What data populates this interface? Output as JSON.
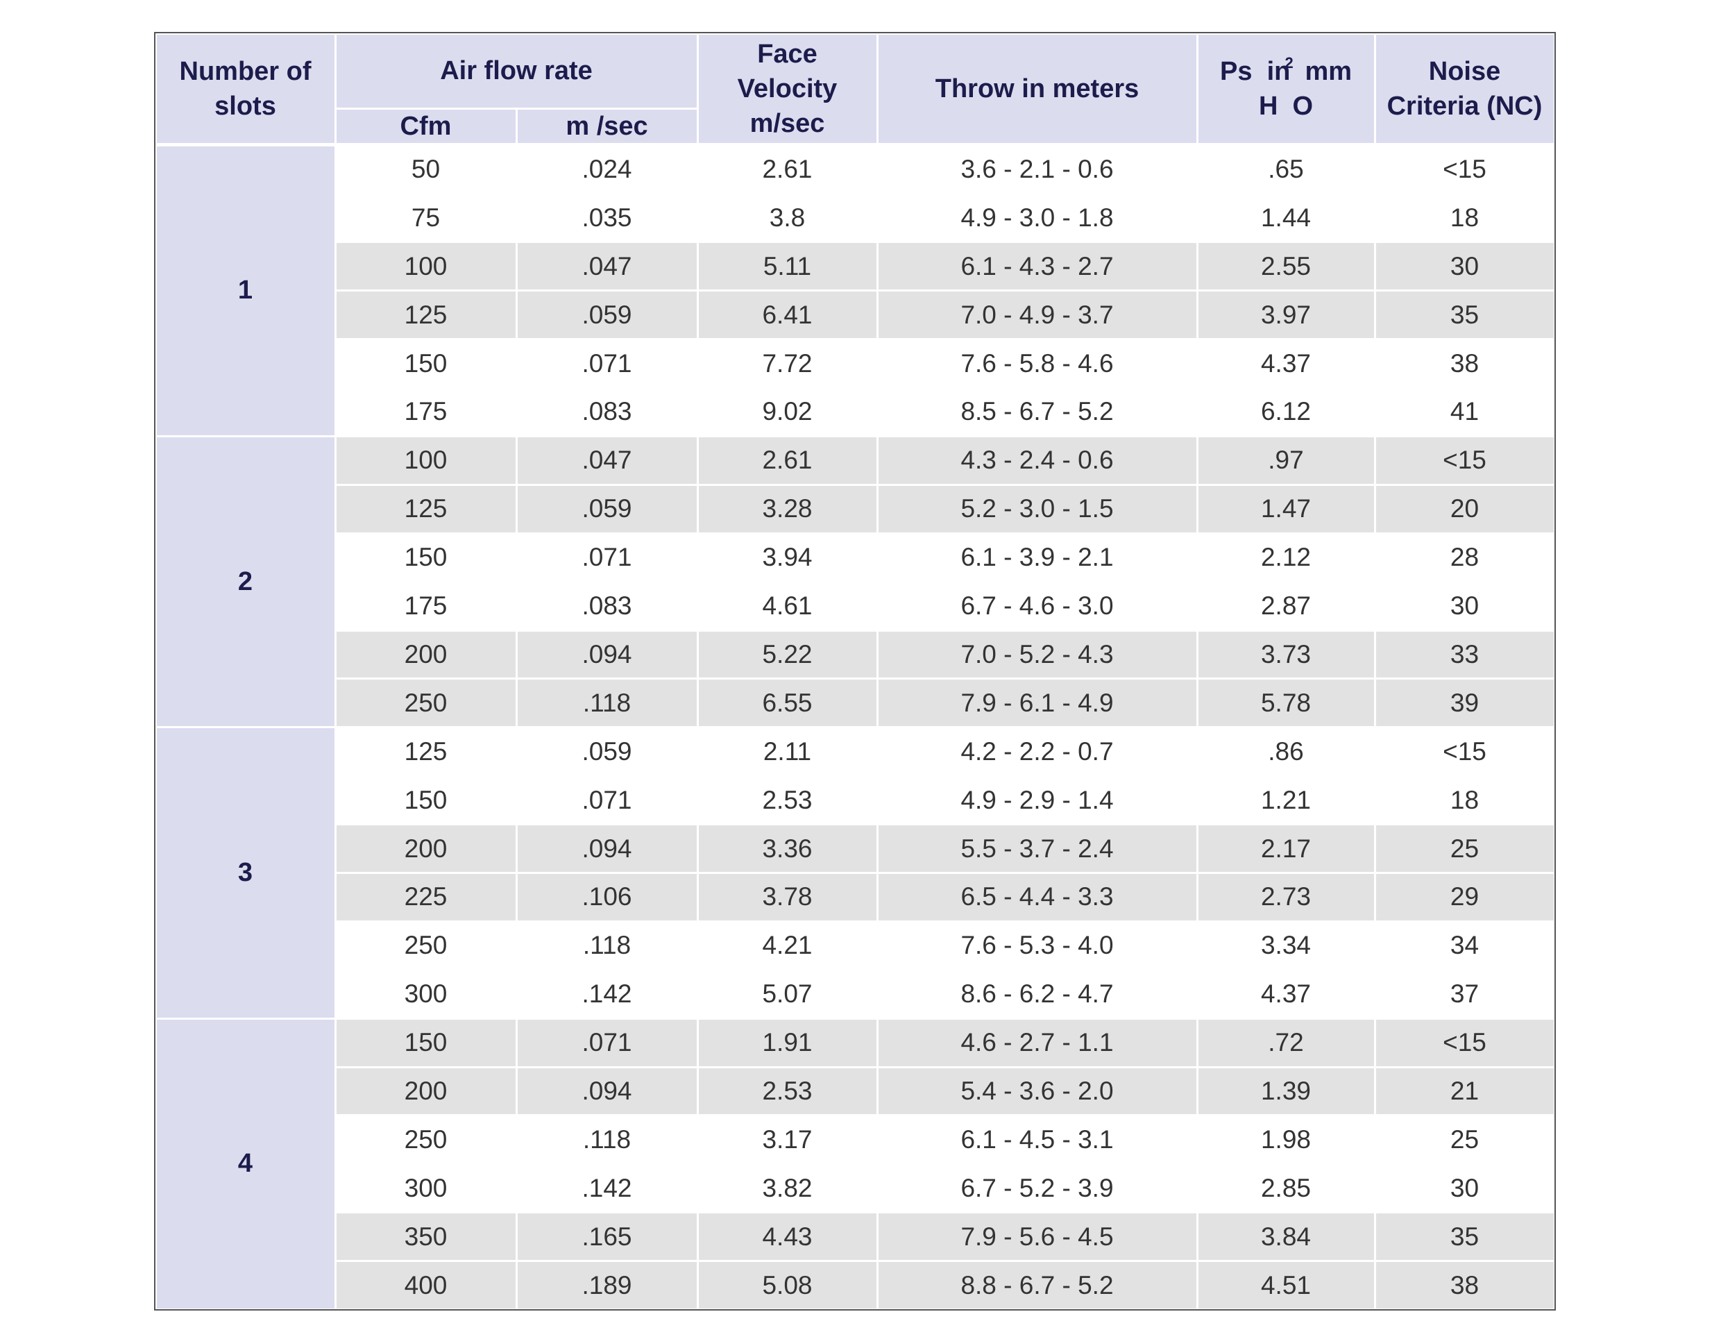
{
  "header": {
    "slots": {
      "lines": [
        "Number of",
        "slots"
      ]
    },
    "air_flow": {
      "lines": [
        "Air flow rate"
      ],
      "sub": [
        "Cfm",
        "m /sec"
      ]
    },
    "face_velocity": {
      "lines": [
        "Face",
        "Velocity",
        "m/sec"
      ]
    },
    "throw": {
      "lines": [
        "Throw in meters"
      ]
    },
    "pressure": {
      "lines": [
        "Ps  in  mm",
        "H  O"
      ],
      "superscript": "2"
    },
    "noise": {
      "lines": [
        "Noise",
        "Criteria (NC)"
      ]
    }
  },
  "groups": [
    {
      "slots": "1",
      "rows": [
        [
          "50",
          ".024",
          "2.61",
          "3.6 - 2.1 - 0.6",
          ".65",
          "<15"
        ],
        [
          "75",
          ".035",
          "3.8",
          "4.9 - 3.0 - 1.8",
          "1.44",
          "18"
        ],
        [
          "100",
          ".047",
          "5.11",
          "6.1 - 4.3 - 2.7",
          "2.55",
          "30"
        ],
        [
          "125",
          ".059",
          "6.41",
          "7.0 - 4.9 - 3.7",
          "3.97",
          "35"
        ],
        [
          "150",
          ".071",
          "7.72",
          "7.6 - 5.8 - 4.6",
          "4.37",
          "38"
        ],
        [
          "175",
          ".083",
          "9.02",
          "8.5 - 6.7 - 5.2",
          "6.12",
          "41"
        ]
      ]
    },
    {
      "slots": "2",
      "rows": [
        [
          "100",
          ".047",
          "2.61",
          "4.3 - 2.4 - 0.6",
          ".97",
          "<15"
        ],
        [
          "125",
          ".059",
          "3.28",
          "5.2 - 3.0 - 1.5",
          "1.47",
          "20"
        ],
        [
          "150",
          ".071",
          "3.94",
          "6.1 - 3.9 - 2.1",
          "2.12",
          "28"
        ],
        [
          "175",
          ".083",
          "4.61",
          "6.7 - 4.6 - 3.0",
          "2.87",
          "30"
        ],
        [
          "200",
          ".094",
          "5.22",
          "7.0 - 5.2 - 4.3",
          "3.73",
          "33"
        ],
        [
          "250",
          ".118",
          "6.55",
          "7.9 - 6.1 - 4.9",
          "5.78",
          "39"
        ]
      ]
    },
    {
      "slots": "3",
      "rows": [
        [
          "125",
          ".059",
          "2.11",
          "4.2 - 2.2 - 0.7",
          ".86",
          "<15"
        ],
        [
          "150",
          ".071",
          "2.53",
          "4.9 - 2.9 - 1.4",
          "1.21",
          "18"
        ],
        [
          "200",
          ".094",
          "3.36",
          "5.5 - 3.7 - 2.4",
          "2.17",
          "25"
        ],
        [
          "225",
          ".106",
          "3.78",
          "6.5 - 4.4 - 3.3",
          "2.73",
          "29"
        ],
        [
          "250",
          ".118",
          "4.21",
          "7.6 - 5.3 - 4.0",
          "3.34",
          "34"
        ],
        [
          "300",
          ".142",
          "5.07",
          "8.6 - 6.2 - 4.7",
          "4.37",
          "37"
        ]
      ]
    },
    {
      "slots": "4",
      "rows": [
        [
          "150",
          ".071",
          "1.91",
          "4.6 - 2.7 - 1.1",
          ".72",
          "<15"
        ],
        [
          "200",
          ".094",
          "2.53",
          "5.4 - 3.6 - 2.0",
          "1.39",
          "21"
        ],
        [
          "250",
          ".118",
          "3.17",
          "6.1 - 4.5 - 3.1",
          "1.98",
          "25"
        ],
        [
          "300",
          ".142",
          "3.82",
          "6.7 - 5.2 - 3.9",
          "2.85",
          "30"
        ],
        [
          "350",
          ".165",
          "4.43",
          "7.9 - 5.6 - 4.5",
          "3.84",
          "35"
        ],
        [
          "400",
          ".189",
          "5.08",
          "8.8 - 6.7 - 5.2",
          "4.51",
          "38"
        ]
      ]
    }
  ]
}
